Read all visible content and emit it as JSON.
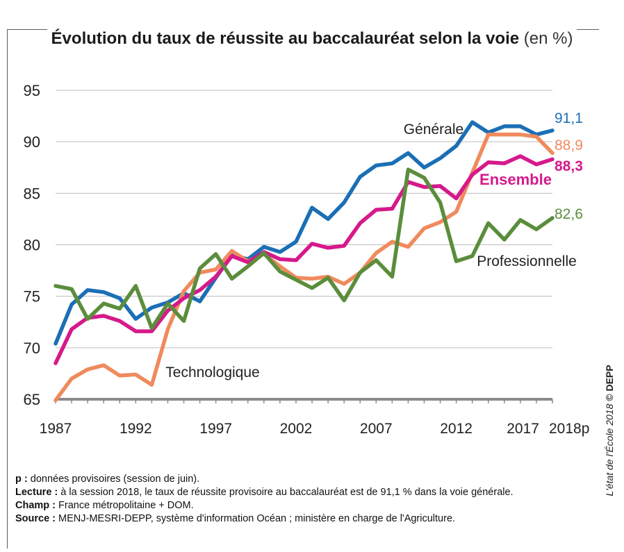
{
  "title": {
    "main": "Évolution du taux de réussite au baccalauréat selon la voie",
    "unit": "(en %)"
  },
  "chart_data": {
    "type": "line",
    "title": "Évolution du taux de réussite au baccalauréat selon la voie (en %)",
    "xlabel": "",
    "ylabel": "",
    "x_tick_labels": [
      "1987",
      "1992",
      "1997",
      "2002",
      "2007",
      "2012",
      "2017",
      "2018p"
    ],
    "ylim": [
      65,
      95
    ],
    "y_ticks": [
      65,
      70,
      75,
      80,
      85,
      90,
      95
    ],
    "x": [
      1987,
      1988,
      1989,
      1990,
      1991,
      1992,
      1993,
      1994,
      1995,
      1996,
      1997,
      1998,
      1999,
      2000,
      2001,
      2002,
      2003,
      2004,
      2005,
      2006,
      2007,
      2008,
      2009,
      2010,
      2011,
      2012,
      2013,
      2014,
      2015,
      2016,
      2017,
      2018
    ],
    "grid": "horizontal",
    "series": [
      {
        "name": "Générale",
        "color": "#1b6fb5",
        "end_label": "91,1",
        "values": [
          70.4,
          74.2,
          75.6,
          75.4,
          74.8,
          72.8,
          73.9,
          74.4,
          75.3,
          74.5,
          76.8,
          79.0,
          78.6,
          79.8,
          79.3,
          80.3,
          83.6,
          82.5,
          84.1,
          86.6,
          87.7,
          87.9,
          88.9,
          87.5,
          88.4,
          89.6,
          91.9,
          90.9,
          91.5,
          91.5,
          90.7,
          91.1
        ]
      },
      {
        "name": "Technologique",
        "color": "#f08a5d",
        "end_label": "88,9",
        "values": [
          64.9,
          67.0,
          67.9,
          68.3,
          67.3,
          67.4,
          66.4,
          71.8,
          75.5,
          77.3,
          77.6,
          79.4,
          78.4,
          79.1,
          77.9,
          76.8,
          76.7,
          76.9,
          76.2,
          77.3,
          79.2,
          80.3,
          79.8,
          81.6,
          82.2,
          83.2,
          87.0,
          90.7,
          90.7,
          90.7,
          90.5,
          88.9
        ]
      },
      {
        "name": "Ensemble",
        "color": "#d6198b",
        "end_label": "88,3",
        "values": [
          68.5,
          71.8,
          72.9,
          73.1,
          72.6,
          71.6,
          71.6,
          73.6,
          74.8,
          75.6,
          76.9,
          78.9,
          78.3,
          79.3,
          78.6,
          78.5,
          80.1,
          79.7,
          79.9,
          82.1,
          83.4,
          83.5,
          86.1,
          85.6,
          85.7,
          84.5,
          86.8,
          88.0,
          87.9,
          88.6,
          87.8,
          88.3
        ]
      },
      {
        "name": "Professionnelle",
        "color": "#5b8d3c",
        "end_label": "82,6",
        "values": [
          76.0,
          75.7,
          72.8,
          74.3,
          73.8,
          76.0,
          71.9,
          74.3,
          72.6,
          77.7,
          79.1,
          76.7,
          77.9,
          79.2,
          77.4,
          76.6,
          75.8,
          76.8,
          74.6,
          77.3,
          78.5,
          76.9,
          87.3,
          86.5,
          84.1,
          78.4,
          78.9,
          82.1,
          80.5,
          82.4,
          81.5,
          82.6
        ]
      }
    ]
  },
  "notes": [
    {
      "label": "p :",
      "text": "données provisoires (session de juin)."
    },
    {
      "label": "Lecture :",
      "text": "à la session 2018, le taux de réussite provisoire au baccalauréat est de 91,1 % dans la voie générale."
    },
    {
      "label": "Champ :",
      "text": "France métropolitaine + DOM."
    },
    {
      "label": "Source :",
      "text": "MENJ-MESRI-DEPP, système d'information Océan ; ministère en charge de l'Agriculture."
    }
  ],
  "sidebar": {
    "italic": "L'état de l'École 2018",
    "bold": "© DEPP"
  }
}
